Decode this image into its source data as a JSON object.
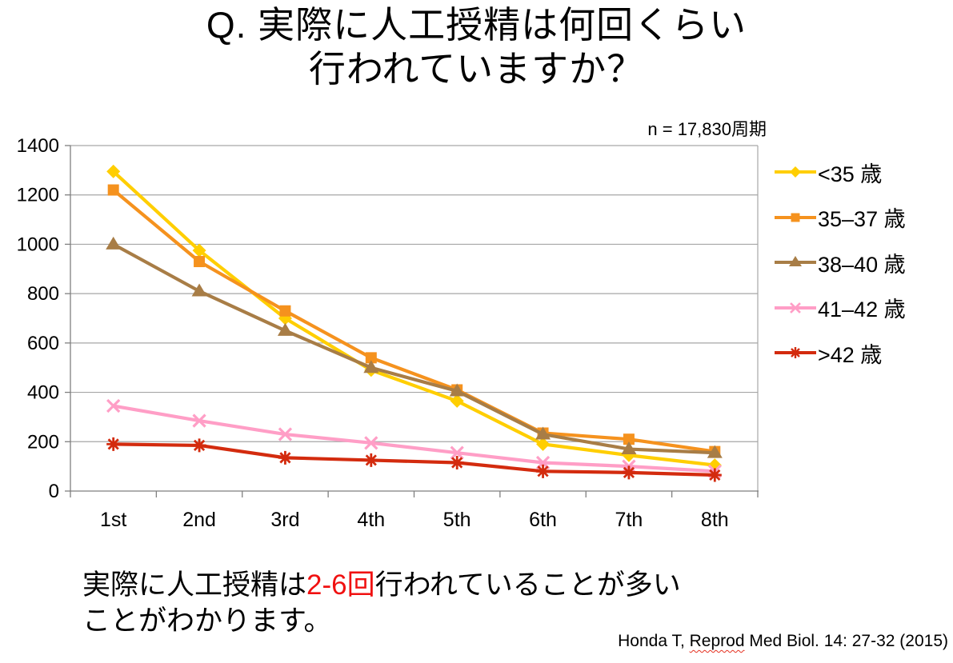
{
  "title": "Q. 実際に人工授精は何回くらい\n行われていますか？",
  "conclusion": {
    "prefix": "実際に人工授精は",
    "highlight": "2-6回",
    "suffix": "行われていることが多い\nことがわかります。"
  },
  "citation": {
    "pre": "Honda T, ",
    "misspelled_word": "Reprod",
    "post": " Med Biol. 14: 27-32 (2015)"
  },
  "colors": {
    "highlight_red": "#F01010",
    "squiggle_red": "#E53020",
    "gridline": "#A6A6A6",
    "axis": "#7F7F7F"
  },
  "chart_data": {
    "type": "line",
    "title": "",
    "xlabel": "",
    "ylabel": "",
    "annotation": "n = 17,830周期",
    "categories": [
      "1st",
      "2nd",
      "3rd",
      "4th",
      "5th",
      "6th",
      "7th",
      "8th"
    ],
    "series": [
      {
        "name": "<35 歳",
        "color": "#FFCE00",
        "marker": "diamond",
        "values": [
          1295,
          975,
          700,
          490,
          365,
          190,
          145,
          105
        ]
      },
      {
        "name": "35–37 歳",
        "color": "#F5921E",
        "marker": "square",
        "values": [
          1220,
          930,
          730,
          540,
          410,
          235,
          210,
          160
        ]
      },
      {
        "name": "38–40 歳",
        "color": "#A87D46",
        "marker": "triangle",
        "values": [
          1000,
          810,
          650,
          500,
          405,
          230,
          170,
          155
        ]
      },
      {
        "name": "41–42 歳",
        "color": "#FF9EC6",
        "marker": "x",
        "values": [
          345,
          285,
          230,
          195,
          155,
          115,
          100,
          80
        ]
      },
      {
        "name": ">42 歳",
        "color": "#D32B0E",
        "marker": "asterisk",
        "values": [
          190,
          185,
          135,
          125,
          115,
          80,
          75,
          65
        ]
      }
    ],
    "ylim": [
      0,
      1400
    ],
    "ytick_step": 200,
    "grid": true,
    "legend_position": "right"
  }
}
